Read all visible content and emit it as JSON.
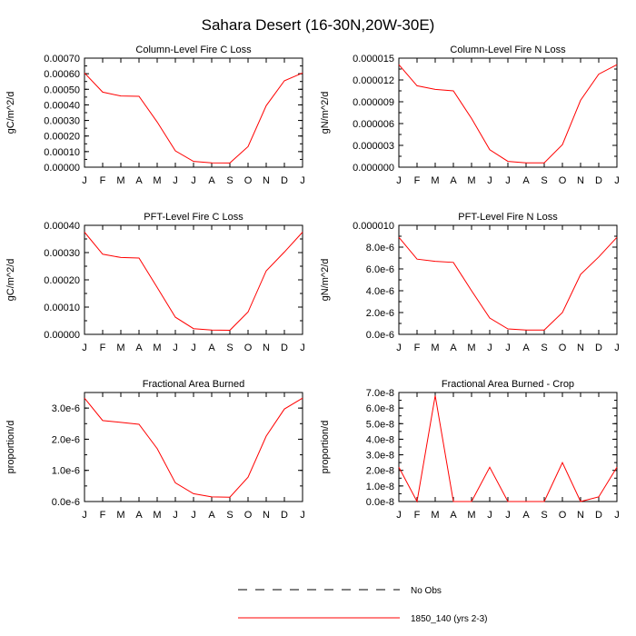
{
  "figure": {
    "title": "Sahara Desert (16-30N,20W-30E)",
    "legend": [
      {
        "label": "No Obs",
        "color": "#000000",
        "dash": true
      },
      {
        "label": "1850_140 (yrs 2-3)",
        "color": "#ff0000",
        "dash": false
      }
    ]
  },
  "chart_data": [
    {
      "type": "line",
      "title": "Column-Level Fire C Loss",
      "ylabel": "gC/m^2/d",
      "xlabel": "",
      "categories": [
        "J",
        "F",
        "M",
        "A",
        "M",
        "J",
        "J",
        "A",
        "S",
        "O",
        "N",
        "D",
        "J"
      ],
      "ylim": [
        0,
        0.0007
      ],
      "yticks": [
        0,
        0.0001,
        0.0002,
        0.0003,
        0.0004,
        0.0005,
        0.0006,
        0.0007
      ],
      "ytick_labels": [
        "0.00000",
        "0.00010",
        "0.00020",
        "0.00030",
        "0.00040",
        "0.00050",
        "0.00060",
        "0.00070"
      ],
      "yminor": 5e-05,
      "series": [
        {
          "name": "1850_140 (yrs 2-3)",
          "color": "#ff0000",
          "values": [
            0.000605,
            0.000482,
            0.000457,
            0.000455,
            0.00029,
            0.000105,
            3.7e-05,
            2.8e-05,
            2.7e-05,
            0.000132,
            0.000395,
            0.000555,
            0.000605
          ]
        }
      ]
    },
    {
      "type": "line",
      "title": "Column-Level Fire N Loss",
      "ylabel": "gN/m^2/d",
      "xlabel": "",
      "categories": [
        "J",
        "F",
        "M",
        "A",
        "M",
        "J",
        "J",
        "A",
        "S",
        "O",
        "N",
        "D",
        "J"
      ],
      "ylim": [
        0,
        1.5e-05
      ],
      "yticks": [
        0,
        3e-06,
        6e-06,
        9e-06,
        1.2e-05,
        1.5e-05
      ],
      "ytick_labels": [
        "0.000000",
        "0.000003",
        "0.000006",
        "0.000009",
        "0.000012",
        "0.000015"
      ],
      "yminor": 1.5e-06,
      "series": [
        {
          "name": "1850_140 (yrs 2-3)",
          "color": "#ff0000",
          "values": [
            1.41e-05,
            1.12e-05,
            1.07e-05,
            1.05e-05,
            6.7e-06,
            2.4e-06,
            8e-07,
            6e-07,
            6e-07,
            3.1e-06,
            9.2e-06,
            1.28e-05,
            1.41e-05
          ]
        }
      ]
    },
    {
      "type": "line",
      "title": "PFT-Level Fire C Loss",
      "ylabel": "gC/m^2/d",
      "xlabel": "",
      "categories": [
        "J",
        "F",
        "M",
        "A",
        "M",
        "J",
        "J",
        "A",
        "S",
        "O",
        "N",
        "D",
        "J"
      ],
      "ylim": [
        0,
        0.0004
      ],
      "yticks": [
        0,
        0.0001,
        0.0002,
        0.0003,
        0.0004
      ],
      "ytick_labels": [
        "0.00000",
        "0.00010",
        "0.00020",
        "0.00030",
        "0.00040"
      ],
      "yminor": 5e-05,
      "series": [
        {
          "name": "1850_140 (yrs 2-3)",
          "color": "#ff0000",
          "values": [
            0.000375,
            0.000294,
            0.000282,
            0.00028,
            0.000172,
            6.3e-05,
            2.1e-05,
            1.6e-05,
            1.5e-05,
            8.2e-05,
            0.000233,
            0.000302,
            0.000375
          ]
        }
      ]
    },
    {
      "type": "line",
      "title": "PFT-Level Fire N Loss",
      "ylabel": "gN/m^2/d",
      "xlabel": "",
      "categories": [
        "J",
        "F",
        "M",
        "A",
        "M",
        "J",
        "J",
        "A",
        "S",
        "O",
        "N",
        "D",
        "J"
      ],
      "ylim": [
        0,
        1e-05
      ],
      "yticks": [
        0,
        2e-06,
        4e-06,
        6e-06,
        8e-06,
        1e-05
      ],
      "ytick_labels": [
        "0.0e-6",
        "2.0e-6",
        "4.0e-6",
        "6.0e-6",
        "8.0e-6",
        "0.000010"
      ],
      "yminor": 1e-06,
      "series": [
        {
          "name": "1850_140 (yrs 2-3)",
          "color": "#ff0000",
          "values": [
            8.9e-06,
            6.9e-06,
            6.7e-06,
            6.6e-06,
            4e-06,
            1.5e-06,
            5e-07,
            4e-07,
            4e-07,
            2e-06,
            5.5e-06,
            7.1e-06,
            8.9e-06
          ]
        }
      ]
    },
    {
      "type": "line",
      "title": "Fractional Area Burned",
      "ylabel": "proportion/d",
      "xlabel": "",
      "categories": [
        "J",
        "F",
        "M",
        "A",
        "M",
        "J",
        "J",
        "A",
        "S",
        "O",
        "N",
        "D",
        "J"
      ],
      "ylim": [
        0,
        3.5e-06
      ],
      "yticks": [
        0,
        1e-06,
        2e-06,
        3e-06
      ],
      "ytick_labels": [
        "0.0e-6",
        "1.0e-6",
        "2.0e-6",
        "3.0e-6"
      ],
      "yminor": 5e-07,
      "series": [
        {
          "name": "1850_140 (yrs 2-3)",
          "color": "#ff0000",
          "values": [
            3.32e-06,
            2.6e-06,
            2.54e-06,
            2.48e-06,
            1.7e-06,
            6e-07,
            2.5e-07,
            1.5e-07,
            1.4e-07,
            7.8e-07,
            2.1e-06,
            2.97e-06,
            3.32e-06
          ]
        }
      ]
    },
    {
      "type": "line",
      "title": "Fractional Area Burned - Crop",
      "ylabel": "proportion/d",
      "xlabel": "",
      "categories": [
        "J",
        "F",
        "M",
        "A",
        "M",
        "J",
        "J",
        "A",
        "S",
        "O",
        "N",
        "D",
        "J"
      ],
      "ylim": [
        0,
        7e-08
      ],
      "yticks": [
        0,
        1e-08,
        2e-08,
        3e-08,
        4e-08,
        5e-08,
        6e-08,
        7e-08
      ],
      "ytick_labels": [
        "0.0e-8",
        "1.0e-8",
        "2.0e-8",
        "3.0e-8",
        "4.0e-8",
        "5.0e-8",
        "6.0e-8",
        "7.0e-8"
      ],
      "yminor": 5e-09,
      "series": [
        {
          "name": "1850_140 (yrs 2-3)",
          "color": "#ff0000",
          "values": [
            2.2e-08,
            0.0,
            6.8e-08,
            0.0,
            0.0,
            2.2e-08,
            0.0,
            0.0,
            0.0,
            2.5e-08,
            0.0,
            3e-09,
            2.2e-08
          ]
        }
      ]
    }
  ]
}
